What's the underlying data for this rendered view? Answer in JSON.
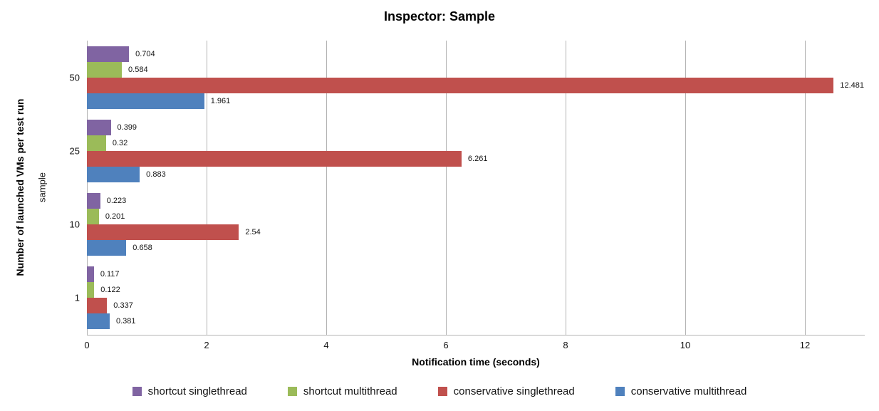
{
  "chart_data": {
    "type": "bar",
    "orientation": "horizontal",
    "title": "Inspector: Sample",
    "xlabel": "Notification time (seconds)",
    "ylabel": "Number of launched VMs per test run",
    "ylabel_secondary": "sample",
    "categories": [
      "50",
      "25",
      "10",
      "1"
    ],
    "series": [
      {
        "name": "shortcut singlethread",
        "color": "#8064A2",
        "values": [
          0.704,
          0.399,
          0.223,
          0.117
        ]
      },
      {
        "name": "shortcut multithread",
        "color": "#9BBB59",
        "values": [
          0.584,
          0.32,
          0.201,
          0.122
        ]
      },
      {
        "name": "conservative singlethread",
        "color": "#C0504D",
        "values": [
          12.481,
          6.261,
          2.54,
          0.337
        ]
      },
      {
        "name": "conservative multithread",
        "color": "#4F81BD",
        "values": [
          1.961,
          0.883,
          0.658,
          0.381
        ]
      }
    ],
    "xlim": [
      0,
      13
    ],
    "xticks": [
      0,
      2,
      4,
      6,
      8,
      10,
      12
    ],
    "grid": "vertical-major",
    "legend_position": "bottom",
    "bar_value_labels": true
  },
  "style": {
    "gridline_color": "#b3b3b3",
    "axis_line_color": "#b3b3b3",
    "text_color": "#141414",
    "background": "#ffffff"
  }
}
